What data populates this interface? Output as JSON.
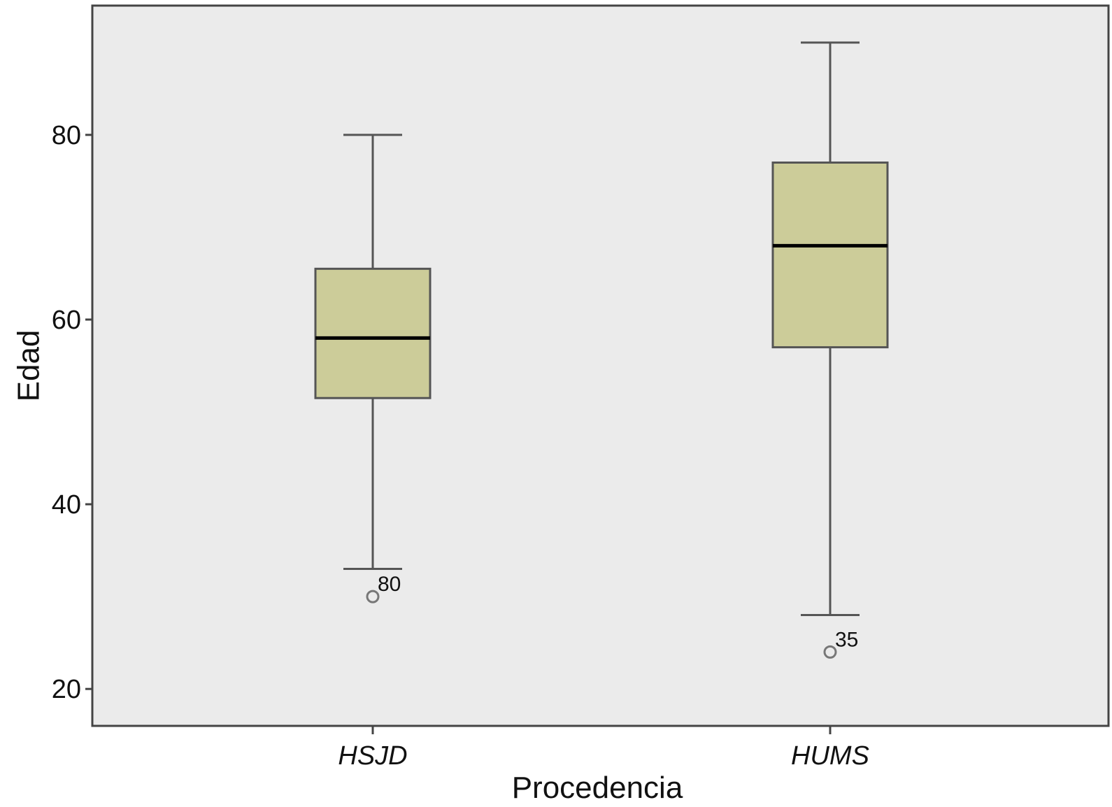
{
  "chart_data": {
    "type": "box",
    "xlabel": "Procedencia",
    "ylabel": "Edad",
    "ylim": [
      16,
      94
    ],
    "yticks": [
      20,
      40,
      60,
      80
    ],
    "grid": false,
    "colors": {
      "plot_background": "#ebebeb",
      "box_fill": "#cccc99",
      "box_stroke": "#555555",
      "median": "#000000",
      "outlier": "#777777"
    },
    "categories": [
      "HSJD",
      "HUMS"
    ],
    "boxes": [
      {
        "category": "HSJD",
        "whisker_low": 33,
        "q1": 51.5,
        "median": 58,
        "q3": 65.5,
        "whisker_high": 80,
        "outliers": [
          {
            "value": 30,
            "label": "80"
          }
        ]
      },
      {
        "category": "HUMS",
        "whisker_low": 28,
        "q1": 57,
        "median": 68,
        "q3": 77,
        "whisker_high": 90,
        "outliers": [
          {
            "value": 24,
            "label": "35"
          }
        ]
      }
    ]
  }
}
